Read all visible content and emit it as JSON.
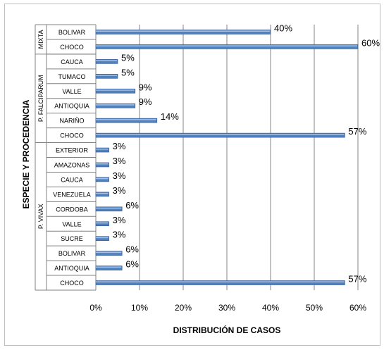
{
  "chart_data": {
    "type": "bar",
    "orientation": "horizontal",
    "xlabel": "DISTRIBUCIÓN DE CASOS",
    "ylabel": "ESPECIE Y PROCEDENCIA",
    "xlim": [
      0,
      60
    ],
    "x_ticks": [
      "0%",
      "10%",
      "20%",
      "30%",
      "40%",
      "50%",
      "60%"
    ],
    "grid": true,
    "bar_color": "#4f81bd",
    "groups": [
      {
        "name": "MIXTA",
        "items": [
          {
            "label": "BOLIVAR",
            "value": 40,
            "value_label": "40%"
          },
          {
            "label": "CHOCO",
            "value": 60,
            "value_label": "60%"
          }
        ]
      },
      {
        "name": "P. FALCIPARUM",
        "items": [
          {
            "label": "CAUCA",
            "value": 5,
            "value_label": "5%"
          },
          {
            "label": "TUMACO",
            "value": 5,
            "value_label": "5%"
          },
          {
            "label": "VALLE",
            "value": 9,
            "value_label": "9%"
          },
          {
            "label": "ANTIOQUIA",
            "value": 9,
            "value_label": "9%"
          },
          {
            "label": "NARIÑO",
            "value": 14,
            "value_label": "14%"
          },
          {
            "label": "CHOCO",
            "value": 57,
            "value_label": "57%"
          }
        ]
      },
      {
        "name": "P. VIVAX",
        "items": [
          {
            "label": "EXTERIOR",
            "value": 3,
            "value_label": "3%"
          },
          {
            "label": "AMAZONAS",
            "value": 3,
            "value_label": "3%"
          },
          {
            "label": "CAUCA",
            "value": 3,
            "value_label": "3%"
          },
          {
            "label": "VENEZUELA",
            "value": 3,
            "value_label": "3%"
          },
          {
            "label": "CORDOBA",
            "value": 6,
            "value_label": "6%"
          },
          {
            "label": "VALLE",
            "value": 3,
            "value_label": "3%"
          },
          {
            "label": "SUCRE",
            "value": 3,
            "value_label": "3%"
          },
          {
            "label": "BOLIVAR",
            "value": 6,
            "value_label": "6%"
          },
          {
            "label": "ANTIOQUIA",
            "value": 6,
            "value_label": "6%"
          },
          {
            "label": "CHOCO",
            "value": 57,
            "value_label": "57%"
          }
        ]
      }
    ]
  }
}
